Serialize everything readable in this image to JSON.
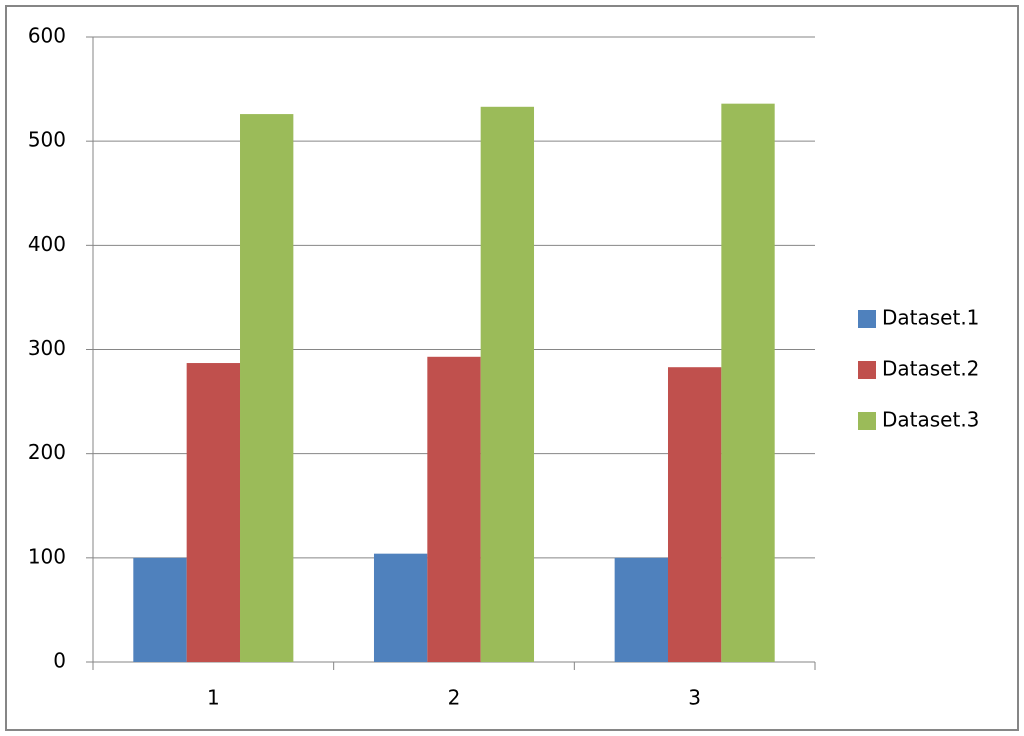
{
  "chart_data": {
    "type": "bar",
    "categories": [
      "1",
      "2",
      "3"
    ],
    "series": [
      {
        "name": "Dataset.1",
        "color": "#4f81bd",
        "values": [
          100,
          104,
          100
        ]
      },
      {
        "name": "Dataset.2",
        "color": "#c0504d",
        "values": [
          287,
          293,
          283
        ]
      },
      {
        "name": "Dataset.3",
        "color": "#9bbb59",
        "values": [
          526,
          533,
          536
        ]
      }
    ],
    "ylim": [
      0,
      600
    ],
    "yticks": [
      0,
      100,
      200,
      300,
      400,
      500,
      600
    ],
    "grid": true,
    "legend": "right"
  }
}
